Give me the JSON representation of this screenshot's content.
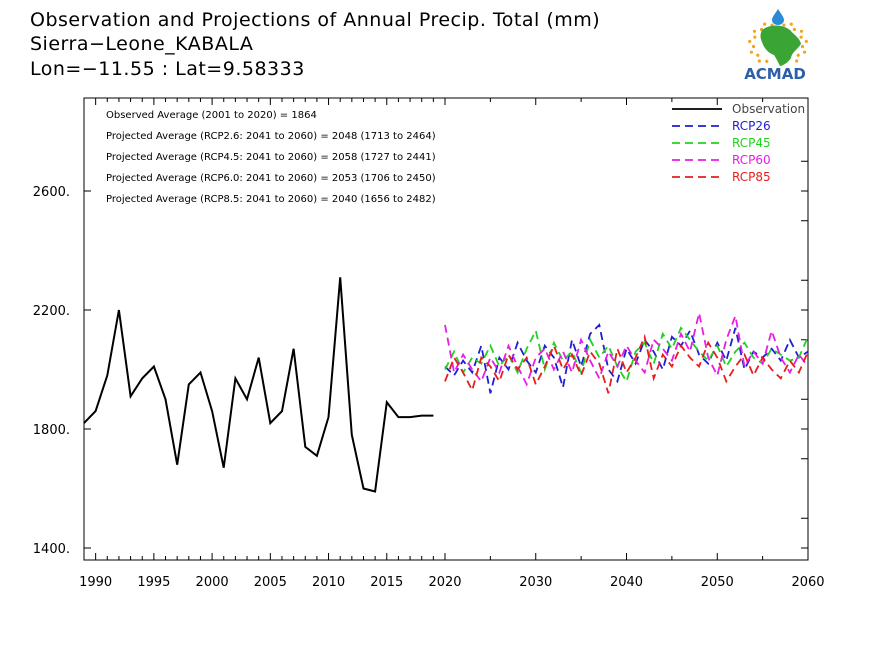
{
  "title_lines": [
    "Observation and Projections of Annual Precip. Total (mm)",
    "Sierra−Leone_KABALA",
    "Lon=−11.55 : Lat=9.58333"
  ],
  "logo": {
    "text": "ACMAD",
    "icon": "africa-map-logo-icon",
    "colors": {
      "africa": "#3aa435",
      "ring": "#f2a51a",
      "drop": "#2b8ad6",
      "text": "#2b5fa8"
    }
  },
  "annotations": [
    "Observed Average (2001 to 2020) = 1864",
    "Projected Average (RCP2.6: 2041 to 2060) = 2048 (1713 to 2464)",
    "Projected Average (RCP4.5: 2041 to 2060) = 2058 (1727 to 2441)",
    "Projected Average (RCP6.0: 2041 to 2060) = 2053 (1706 to 2450)",
    "Projected Average (RCP8.5: 2041 to 2060) = 2040 (1656 to 2482)"
  ],
  "chart_data": {
    "type": "line",
    "title": "Observation and Projections of Annual Precip. Total (mm)",
    "xlabel": "",
    "ylabel": "",
    "ylim": [
      1360,
      2900
    ],
    "y_ticks": [
      1400,
      1800,
      2200,
      2600
    ],
    "y_tick_labels": [
      "1400.",
      "1800.",
      "2200.",
      "2600."
    ],
    "x_segment1": {
      "range": [
        1990,
        2020
      ],
      "ticks": [
        1990,
        1995,
        2000,
        2005,
        2010,
        2015,
        2020
      ]
    },
    "x_segment2": {
      "range": [
        2020,
        2060
      ],
      "ticks": [
        2030,
        2040,
        2050,
        2060
      ]
    },
    "legend_placement": "top-right",
    "grid": false,
    "series": [
      {
        "name": "Observation",
        "color": "#000000",
        "style": "solid",
        "x": [
          1989,
          1990,
          1991,
          1992,
          1993,
          1994,
          1995,
          1996,
          1997,
          1998,
          1999,
          2000,
          2001,
          2002,
          2003,
          2004,
          2005,
          2006,
          2007,
          2008,
          2009,
          2010,
          2011,
          2012,
          2013,
          2014,
          2015,
          2016,
          2017,
          2018,
          2019
        ],
        "values": [
          1820,
          1860,
          1980,
          2200,
          1910,
          1970,
          2010,
          1900,
          1680,
          1950,
          1990,
          1860,
          1670,
          1970,
          1900,
          2040,
          1820,
          1860,
          2070,
          1740,
          1710,
          1840,
          2310,
          1780,
          1600,
          1590,
          1890,
          1840,
          1840,
          1845,
          1845
        ]
      },
      {
        "name": "RCP26",
        "color": "#1e1ed2",
        "style": "dashed",
        "x": [
          2020,
          2021,
          2022,
          2023,
          2024,
          2025,
          2026,
          2027,
          2028,
          2029,
          2030,
          2031,
          2032,
          2033,
          2034,
          2035,
          2036,
          2037,
          2038,
          2039,
          2040,
          2041,
          2042,
          2043,
          2044,
          2045,
          2046,
          2047,
          2048,
          2049,
          2050,
          2051,
          2052,
          2053,
          2054,
          2055,
          2056,
          2057,
          2058,
          2059,
          2060
        ],
        "values": [
          2010,
          1980,
          2030,
          1990,
          2080,
          1920,
          2040,
          2000,
          2090,
          2030,
          1990,
          2080,
          2040,
          1940,
          2100,
          2010,
          2120,
          2150,
          2000,
          1960,
          2070,
          2020,
          2100,
          2060,
          2000,
          2110,
          2080,
          2130,
          2050,
          2020,
          2090,
          2030,
          2140,
          2000,
          2060,
          2040,
          2070,
          2030,
          2100,
          2040,
          2060
        ]
      },
      {
        "name": "RCP45",
        "color": "#1ed21e",
        "style": "dashed",
        "x": [
          2020,
          2021,
          2022,
          2023,
          2024,
          2025,
          2026,
          2027,
          2028,
          2029,
          2030,
          2031,
          2032,
          2033,
          2034,
          2035,
          2036,
          2037,
          2038,
          2039,
          2040,
          2041,
          2042,
          2043,
          2044,
          2045,
          2046,
          2047,
          2048,
          2049,
          2050,
          2051,
          2052,
          2053,
          2054,
          2055,
          2056,
          2057,
          2058,
          2059,
          2060
        ],
        "values": [
          2000,
          2060,
          1990,
          2040,
          2020,
          2080,
          2010,
          2050,
          1990,
          2070,
          2130,
          2000,
          2090,
          2030,
          2060,
          1990,
          2100,
          2040,
          2080,
          2010,
          1960,
          2060,
          2090,
          2020,
          2120,
          2070,
          2140,
          2100,
          2060,
          2030,
          2080,
          2010,
          2060,
          2090,
          2040,
          2020,
          2070,
          2050,
          2030,
          2040,
          2110
        ]
      },
      {
        "name": "RCP60",
        "color": "#e61ee6",
        "style": "dashed",
        "x": [
          2020,
          2021,
          2022,
          2023,
          2024,
          2025,
          2026,
          2027,
          2028,
          2029,
          2030,
          2031,
          2032,
          2033,
          2034,
          2035,
          2036,
          2037,
          2038,
          2039,
          2040,
          2041,
          2042,
          2043,
          2044,
          2045,
          2046,
          2047,
          2048,
          2049,
          2050,
          2051,
          2052,
          2053,
          2054,
          2055,
          2056,
          2057,
          2058,
          2059,
          2060
        ],
        "values": [
          2150,
          1990,
          2050,
          2000,
          1960,
          2040,
          1990,
          2080,
          2010,
          1950,
          2040,
          2070,
          2000,
          2060,
          1990,
          2100,
          2030,
          1970,
          2060,
          2010,
          2080,
          2030,
          1990,
          2100,
          2070,
          2030,
          2120,
          2060,
          2190,
          2040,
          1980,
          2100,
          2180,
          2010,
          2060,
          2020,
          2130,
          2040,
          1990,
          2050,
          2010
        ]
      },
      {
        "name": "RCP85",
        "color": "#e61e1e",
        "style": "dashed",
        "x": [
          2020,
          2021,
          2022,
          2023,
          2024,
          2025,
          2026,
          2027,
          2028,
          2029,
          2030,
          2031,
          2032,
          2033,
          2034,
          2035,
          2036,
          2037,
          2038,
          2039,
          2040,
          2041,
          2042,
          2043,
          2044,
          2045,
          2046,
          2047,
          2048,
          2049,
          2050,
          2051,
          2052,
          2053,
          2054,
          2055,
          2056,
          2057,
          2058,
          2059,
          2060
        ],
        "values": [
          1960,
          2040,
          1990,
          1930,
          2040,
          2010,
          1960,
          2050,
          2000,
          2040,
          1950,
          2010,
          2080,
          2000,
          2050,
          1980,
          2060,
          2020,
          1920,
          2070,
          1990,
          2040,
          2110,
          1970,
          2050,
          2010,
          2080,
          2040,
          2010,
          2090,
          2040,
          1960,
          2010,
          2050,
          1980,
          2040,
          2000,
          1970,
          2030,
          1990,
          2060
        ]
      }
    ]
  }
}
